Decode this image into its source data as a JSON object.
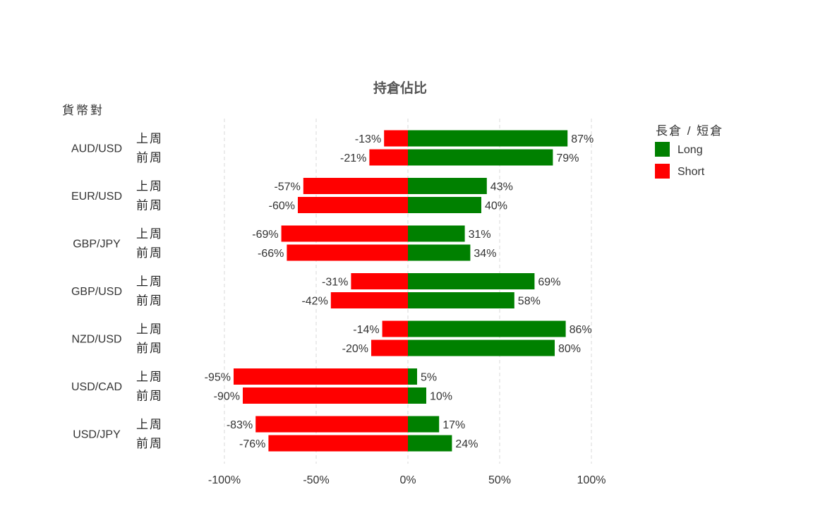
{
  "chart_data": {
    "type": "bar",
    "orientation": "horizontal-diverging",
    "title": "持倉佔比",
    "ylabel": "貨幣對",
    "legend_title": "長倉 / 短倉",
    "legend_position": "right",
    "grid": true,
    "xlim": [
      -100,
      100
    ],
    "xticks": [
      -100,
      -50,
      0,
      50,
      100
    ],
    "xtick_labels": [
      "-100%",
      "-50%",
      "0%",
      "50%",
      "100%"
    ],
    "week_labels": [
      "上周",
      "前周"
    ],
    "series": [
      {
        "name": "Long",
        "color": "#008000"
      },
      {
        "name": "Short",
        "color": "#ff0000"
      }
    ],
    "categories": [
      {
        "pair": "AUD/USD",
        "rows": [
          {
            "week": "上周",
            "short": -13,
            "long": 87
          },
          {
            "week": "前周",
            "short": -21,
            "long": 79
          }
        ]
      },
      {
        "pair": "EUR/USD",
        "rows": [
          {
            "week": "上周",
            "short": -57,
            "long": 43
          },
          {
            "week": "前周",
            "short": -60,
            "long": 40
          }
        ]
      },
      {
        "pair": "GBP/JPY",
        "rows": [
          {
            "week": "上周",
            "short": -69,
            "long": 31
          },
          {
            "week": "前周",
            "short": -66,
            "long": 34
          }
        ]
      },
      {
        "pair": "GBP/USD",
        "rows": [
          {
            "week": "上周",
            "short": -31,
            "long": 69
          },
          {
            "week": "前周",
            "short": -42,
            "long": 58
          }
        ]
      },
      {
        "pair": "NZD/USD",
        "rows": [
          {
            "week": "上周",
            "short": -14,
            "long": 86
          },
          {
            "week": "前周",
            "short": -20,
            "long": 80
          }
        ]
      },
      {
        "pair": "USD/CAD",
        "rows": [
          {
            "week": "上周",
            "short": -95,
            "long": 5
          },
          {
            "week": "前周",
            "short": -90,
            "long": 10
          }
        ]
      },
      {
        "pair": "USD/JPY",
        "rows": [
          {
            "week": "上周",
            "short": -83,
            "long": 17
          },
          {
            "week": "前周",
            "short": -76,
            "long": 24
          }
        ]
      }
    ]
  }
}
